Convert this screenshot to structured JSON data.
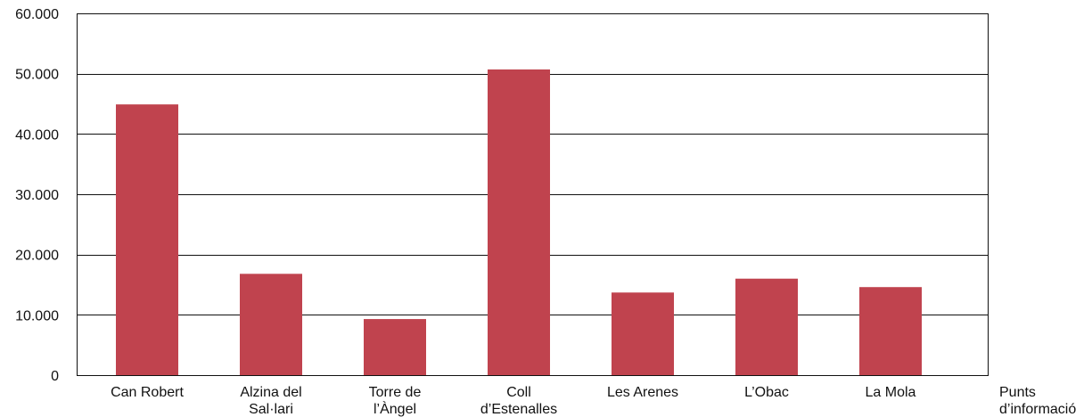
{
  "chart_data": {
    "type": "bar",
    "categories": [
      [
        "Can Robert"
      ],
      [
        "Alzina del",
        "Sal·lari"
      ],
      [
        "Torre de",
        "l’Àngel"
      ],
      [
        "Coll",
        "d’Estenalles"
      ],
      [
        "Les Arenes"
      ],
      [
        "L’Obac"
      ],
      [
        "La Mola"
      ]
    ],
    "values": [
      44900,
      16800,
      9300,
      50700,
      13700,
      16000,
      14600
    ],
    "ylim": [
      0,
      60000
    ],
    "yticks": [
      0,
      10000,
      20000,
      30000,
      40000,
      50000,
      60000
    ],
    "ytick_labels": [
      "0",
      "10.000",
      "20.000",
      "30.000",
      "40.000",
      "50.000",
      "60.000"
    ],
    "xlabel": [
      "Punts",
      "d’informació"
    ],
    "ylabel": "",
    "title": "",
    "grid": true,
    "legend": "none",
    "bar_color": "#c0434e",
    "axis_color": "#111111"
  }
}
